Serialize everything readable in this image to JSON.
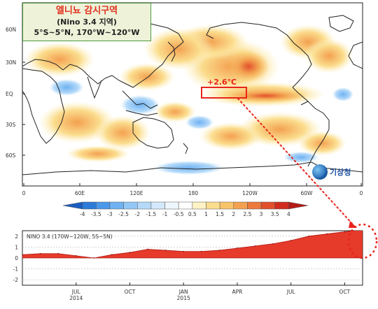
{
  "map": {
    "title_ko": "엘니뇨 감시구역",
    "subtitle_ko": "(Nino 3.4 지역)",
    "region": "5°S~5°N, 170°W~120°W",
    "anomaly_label": "+2.6℃",
    "lat_labels": [
      "60N",
      "30N",
      "EQ",
      "30S",
      "60S"
    ],
    "lon_labels": [
      "0",
      "60E",
      "120E",
      "180",
      "120W",
      "60W",
      "0"
    ],
    "logo_text": "기상청"
  },
  "colorbar": {
    "ticks": [
      "-4",
      "-3.5",
      "-3",
      "-2.5",
      "-2",
      "-1.5",
      "-1",
      "-0.5",
      "0.5",
      "1",
      "1.5",
      "2",
      "2.5",
      "3",
      "3.5",
      "4"
    ],
    "colors": [
      "#1c5cc0",
      "#2d7ad8",
      "#4a98ea",
      "#6fb2f2",
      "#93c8f6",
      "#b5daf9",
      "#d3e9fb",
      "#eef6fd",
      "#ffffff",
      "#fdf2c4",
      "#fbdd8e",
      "#f8c46a",
      "#f3a150",
      "#ec7a3c",
      "#e2502c",
      "#d02c1e",
      "#b41a16"
    ]
  },
  "chart_data": {
    "type": "area",
    "title": "NINO 3.4 (170W~120W, 5S~5N)",
    "ylim": [
      -2.5,
      2.5
    ],
    "yticks": [
      "2",
      "1",
      "0",
      "-1",
      "-2"
    ],
    "x_ticks": [
      {
        "label": "JUL",
        "sub": "2014"
      },
      {
        "label": "OCT",
        "sub": ""
      },
      {
        "label": "JAN",
        "sub": "2015"
      },
      {
        "label": "APR",
        "sub": ""
      },
      {
        "label": "JUL",
        "sub": ""
      },
      {
        "label": "OCT",
        "sub": ""
      }
    ],
    "fill_color": "#e63a2a",
    "x": [
      "2014-04",
      "2014-05",
      "2014-06",
      "2014-07",
      "2014-08",
      "2014-09",
      "2014-10",
      "2014-11",
      "2014-12",
      "2015-01",
      "2015-02",
      "2015-03",
      "2015-04",
      "2015-05",
      "2015-06",
      "2015-07",
      "2015-08",
      "2015-09",
      "2015-10",
      "2015-11"
    ],
    "values": [
      0.3,
      0.4,
      0.4,
      0.2,
      0.0,
      0.3,
      0.5,
      0.8,
      0.7,
      0.6,
      0.6,
      0.7,
      0.9,
      1.1,
      1.3,
      1.6,
      2.0,
      2.2,
      2.4,
      2.6
    ]
  }
}
